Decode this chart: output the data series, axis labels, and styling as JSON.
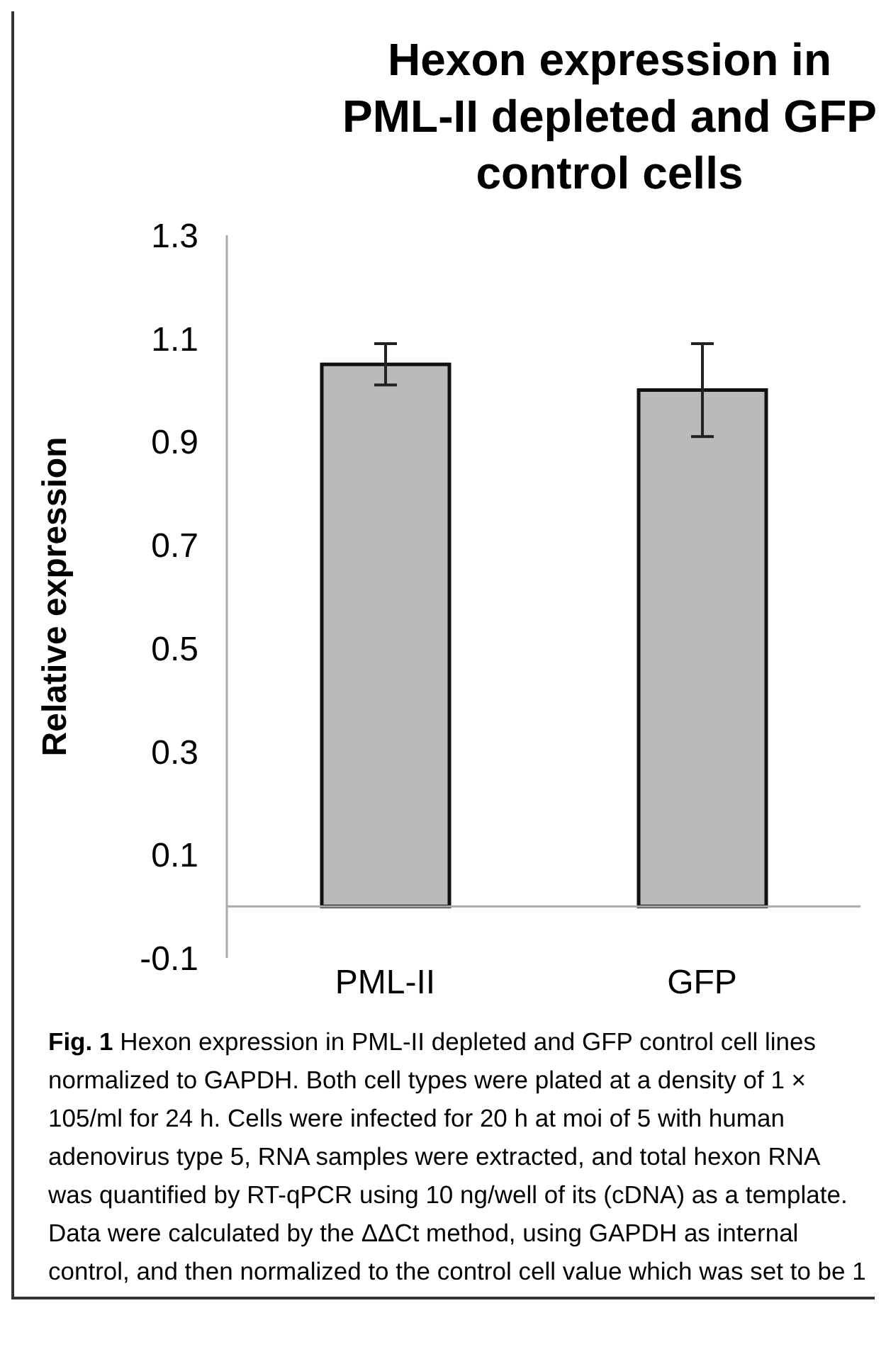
{
  "chart_data": {
    "type": "bar",
    "title": "Hexon expression in PML-II depleted and GFP control cells",
    "ylabel": "Relative expression",
    "categories": [
      "PML-II",
      "GFP"
    ],
    "values": [
      1.05,
      1.0
    ],
    "errors": [
      0.04,
      0.09
    ],
    "color": "#bababa",
    "ylim": [
      -0.1,
      1.3
    ],
    "yticks": [
      -0.1,
      0.1,
      0.3,
      0.5,
      0.7,
      0.9,
      1.1,
      1.3
    ],
    "grid": false,
    "legend": false,
    "annotations": [
      "Fig. 1",
      "Hexon expression in PML-II depleted and GFP control cell lines normalized to GAPDH. Both cell types were plated at a density of 1 × 105/ml for 24 h. Cells were infected for 20 h at moi of 5 with human adenovirus type 5, RNA samples were extracted, and total hexon RNA was quantified by RT-qPCR using 10 ng/well of its (cDNA) as a template. Data were calculated by the ΔΔCt method, using GAPDH as internal control, and then normalized to the control cell value which was set to be 1"
    ]
  }
}
